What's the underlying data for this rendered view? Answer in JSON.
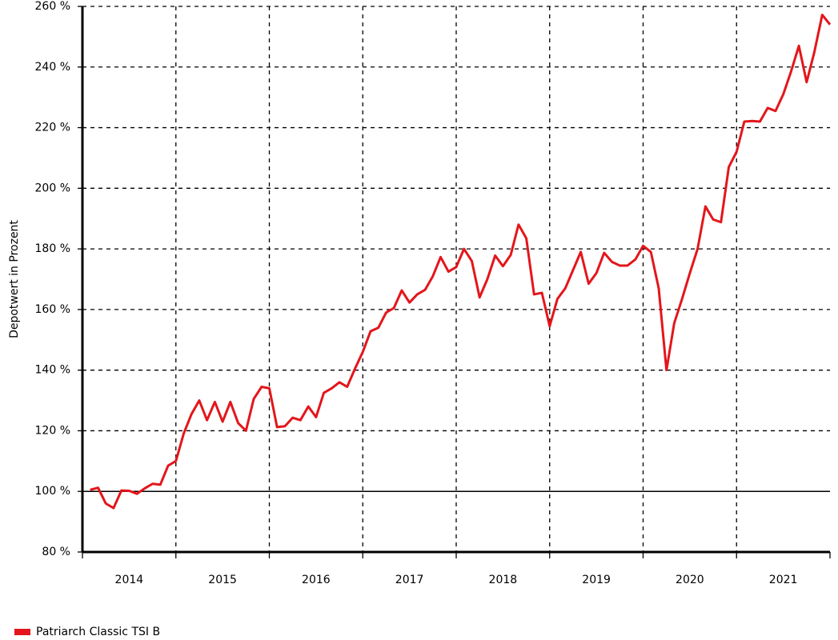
{
  "chart_data": {
    "type": "line",
    "y_axis_label": "Depotwert in Prozent",
    "x": [
      2014.083,
      2014.167,
      2014.25,
      2014.333,
      2014.417,
      2014.5,
      2014.583,
      2014.667,
      2014.75,
      2014.833,
      2014.917,
      2015.0,
      2015.083,
      2015.167,
      2015.25,
      2015.333,
      2015.417,
      2015.5,
      2015.583,
      2015.667,
      2015.75,
      2015.833,
      2015.917,
      2016.0,
      2016.083,
      2016.167,
      2016.25,
      2016.333,
      2016.417,
      2016.5,
      2016.583,
      2016.667,
      2016.75,
      2016.833,
      2016.917,
      2017.0,
      2017.083,
      2017.167,
      2017.25,
      2017.333,
      2017.417,
      2017.5,
      2017.583,
      2017.667,
      2017.75,
      2017.833,
      2017.917,
      2018.0,
      2018.083,
      2018.167,
      2018.25,
      2018.333,
      2018.417,
      2018.5,
      2018.583,
      2018.667,
      2018.75,
      2018.833,
      2018.917,
      2019.0,
      2019.083,
      2019.167,
      2019.25,
      2019.333,
      2019.417,
      2019.5,
      2019.583,
      2019.667,
      2019.75,
      2019.833,
      2019.917,
      2020.0,
      2020.083,
      2020.167,
      2020.25,
      2020.333,
      2020.417,
      2020.5,
      2020.583,
      2020.667,
      2020.75,
      2020.833,
      2020.917,
      2021.0,
      2021.083,
      2021.167,
      2021.25,
      2021.333,
      2021.417,
      2021.5,
      2021.583,
      2021.667,
      2021.75,
      2021.833,
      2021.917,
      2022.0
    ],
    "series": [
      {
        "name": "Patriarch Classic TSI B",
        "color": "#e3161b",
        "values": [
          100.5,
          101.2,
          96,
          94.5,
          100.3,
          100.2,
          99.2,
          101,
          102.5,
          102.2,
          108.5,
          110,
          119,
          125.5,
          130,
          123.5,
          129.5,
          123,
          129.5,
          122.5,
          120,
          130.5,
          134.5,
          134,
          121.2,
          121.5,
          124.3,
          123.5,
          128,
          124.5,
          132.5,
          134,
          136,
          134.5,
          140.5,
          146,
          152.8,
          154,
          159,
          160.5,
          166.3,
          162.3,
          165,
          166.5,
          171,
          177.3,
          172.5,
          174,
          180,
          176,
          164,
          170,
          177.8,
          174.3,
          178,
          188,
          183.5,
          165,
          165.5,
          154.5,
          163.5,
          167,
          173,
          179,
          168.5,
          172,
          178.7,
          175.7,
          174.5,
          174.5,
          176.5,
          181,
          179,
          167,
          140,
          155.5,
          163.5,
          172,
          180,
          194,
          189.7,
          188.8,
          207,
          212,
          222,
          222.2,
          222,
          226.5,
          225.5,
          231,
          238.5,
          247,
          235,
          245,
          257.2,
          254
        ]
      }
    ],
    "xlim": [
      2014,
      2022
    ],
    "xticks": [
      {
        "value": 2014.5,
        "label": "2014"
      },
      {
        "value": 2015.5,
        "label": "2015"
      },
      {
        "value": 2016.5,
        "label": "2016"
      },
      {
        "value": 2017.5,
        "label": "2017"
      },
      {
        "value": 2018.5,
        "label": "2018"
      },
      {
        "value": 2019.5,
        "label": "2019"
      },
      {
        "value": 2020.5,
        "label": "2020"
      },
      {
        "value": 2021.5,
        "label": "2021"
      }
    ],
    "xgrid": [
      2015,
      2016,
      2017,
      2018,
      2019,
      2020,
      2021
    ],
    "ylim": [
      80,
      260
    ],
    "yticks": [
      {
        "value": 80,
        "label": "80 %"
      },
      {
        "value": 100,
        "label": "100 %"
      },
      {
        "value": 120,
        "label": "120 %"
      },
      {
        "value": 140,
        "label": "140 %"
      },
      {
        "value": 160,
        "label": "160 %"
      },
      {
        "value": 180,
        "label": "180 %"
      },
      {
        "value": 200,
        "label": "200 %"
      },
      {
        "value": 220,
        "label": "220 %"
      },
      {
        "value": 240,
        "label": "240 %"
      },
      {
        "value": 260,
        "label": "260 %"
      }
    ],
    "hline": 100,
    "grid": true,
    "legend": "bottom-left"
  }
}
